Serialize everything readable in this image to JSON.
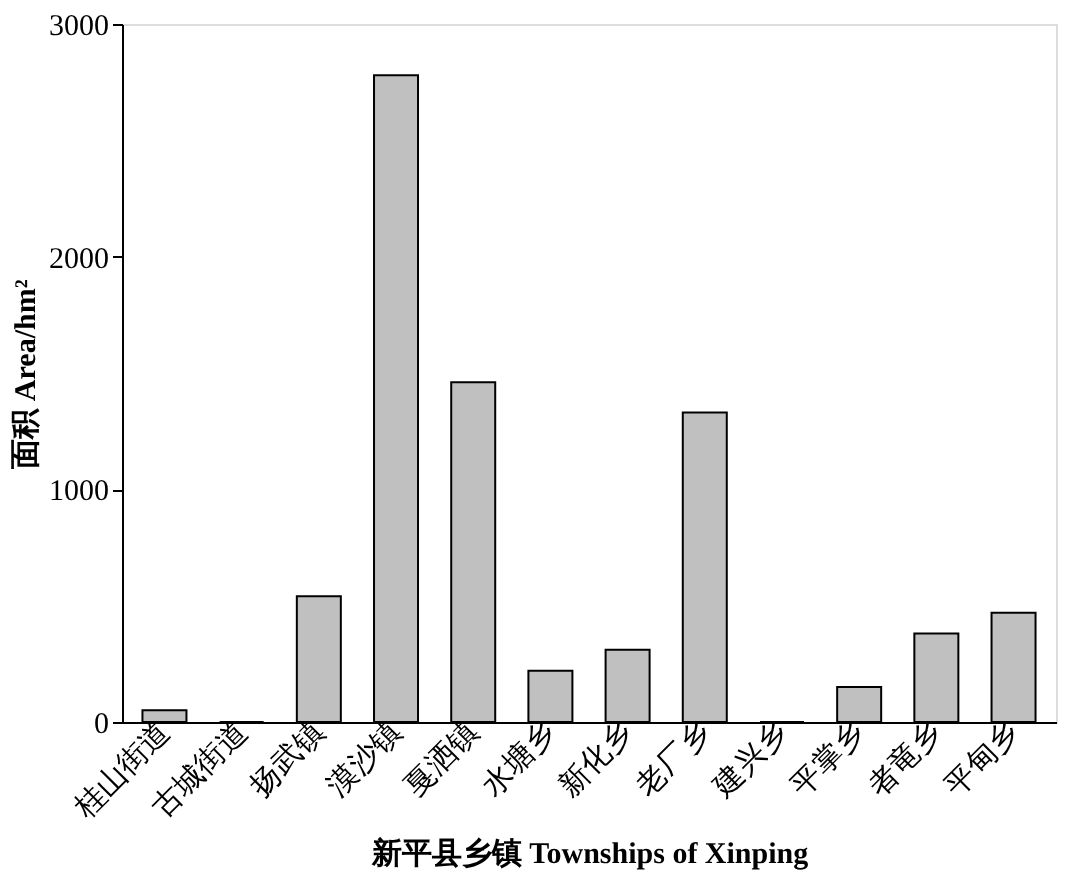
{
  "chart_data": {
    "type": "bar",
    "xlabel": "新平县乡镇 Townships of Xinping",
    "ylabel": "面积 Area/hm²",
    "categories": [
      "桂山街道",
      "古城街道",
      "扬武镇",
      "漠沙镇",
      "戛洒镇",
      "水塘乡",
      "新化乡",
      "老厂乡",
      "建兴乡",
      "平掌乡",
      "者竜乡",
      "平甸乡"
    ],
    "values": [
      50,
      0,
      540,
      2780,
      1460,
      220,
      310,
      1330,
      0,
      150,
      380,
      470
    ],
    "color": "#c0c0c0",
    "ylim": [
      0,
      3000
    ],
    "yticks": [
      0,
      1000,
      2000,
      3000
    ],
    "grid": false
  }
}
